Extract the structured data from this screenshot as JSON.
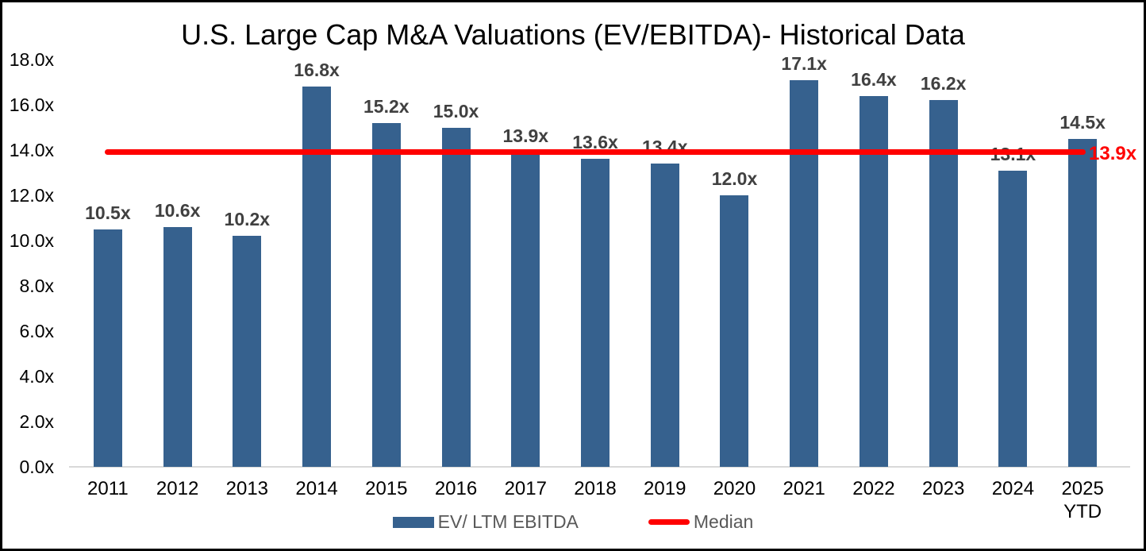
{
  "chart_data": {
    "type": "bar",
    "title": "U.S. Large Cap M&A Valuations (EV/EBITDA)- Historical Data",
    "categories": [
      "2011",
      "2012",
      "2013",
      "2014",
      "2015",
      "2016",
      "2017",
      "2018",
      "2019",
      "2020",
      "2021",
      "2022",
      "2023",
      "2024",
      "2025 YTD"
    ],
    "values": [
      10.5,
      10.6,
      10.2,
      16.8,
      15.2,
      15.0,
      13.9,
      13.6,
      13.4,
      12.0,
      17.1,
      16.4,
      16.2,
      13.1,
      14.5
    ],
    "bar_labels": [
      "10.5x",
      "10.6x",
      "10.2x",
      "16.8x",
      "15.2x",
      "15.0x",
      "13.9x",
      "13.6x",
      "13.4x",
      "12.0x",
      "17.1x",
      "16.4x",
      "16.2x",
      "13.1x",
      "14.5x"
    ],
    "median": 13.9,
    "median_label": "13.9x",
    "ylim": [
      0,
      18
    ],
    "ytick_step": 2,
    "ytick_labels": [
      "0.0x",
      "2.0x",
      "4.0x",
      "6.0x",
      "8.0x",
      "10.0x",
      "12.0x",
      "14.0x",
      "16.0x",
      "18.0x"
    ],
    "grid": false,
    "legend_position": "bottom-center",
    "legend": [
      {
        "label": "EV/ LTM EBITDA",
        "type": "bar"
      },
      {
        "label": "Median",
        "type": "line"
      }
    ],
    "colors": {
      "bar": "#36618E",
      "median": "#FF0000",
      "bar_label": "#404040",
      "axis_line": "#D9D9D9",
      "tick_label": "#000000",
      "legend_text": "#595959",
      "title": "#000000"
    }
  }
}
